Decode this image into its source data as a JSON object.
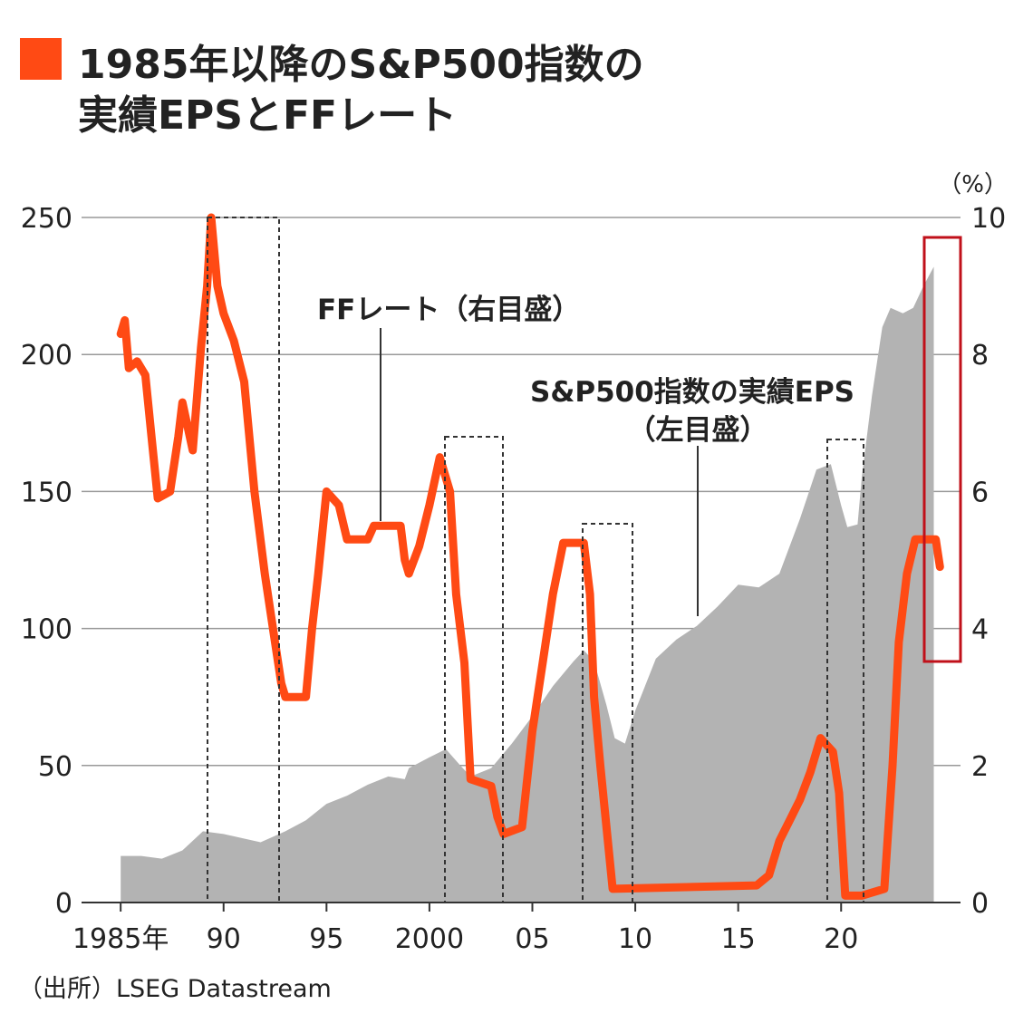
{
  "chart_data": {
    "type": "combo",
    "title": "1985年以降のS&P500指数の",
    "subtitle": "実績EPSとFFレート",
    "source": "（出所）LSEG Datastream",
    "y2_unit": "（%）",
    "annotations": [
      "FFレート（右目盛）",
      "S&P500指数の実績EPS",
      "（左目盛）"
    ],
    "xlim": [
      1983.1,
      2025.8
    ],
    "xticks": [
      {
        "value": 1985,
        "label": "1985年"
      },
      {
        "value": 1990,
        "label": "90"
      },
      {
        "value": 1995,
        "label": "95"
      },
      2000,
      {
        "value": 2005,
        "label": "05"
      },
      {
        "value": 2010,
        "label": "10"
      },
      {
        "value": 2015,
        "label": "15"
      },
      {
        "value": 2020,
        "label": "20"
      }
    ],
    "ylim": [
      0,
      250
    ],
    "yticks": [
      0,
      50,
      100,
      150,
      200,
      250
    ],
    "y2lim": [
      0,
      10
    ],
    "y2ticks": [
      0,
      2,
      4,
      6,
      8,
      10
    ],
    "grid": true,
    "series": [
      {
        "name": "S&P500指数の実績EPS",
        "type": "area",
        "color": "#b3b3b3",
        "x": [
          1985,
          1986,
          1987,
          1988,
          1989,
          1990,
          1991.8,
          1993,
          1994,
          1995,
          1996,
          1997,
          1998,
          1998.8,
          1999,
          2000,
          2000.8,
          2001.5,
          2002,
          2003,
          2004,
          2005,
          2006,
          2007,
          2007.5,
          2008,
          2008.6,
          2009,
          2009.5,
          2010,
          2011,
          2012,
          2013,
          2014,
          2015,
          2016,
          2017,
          2018,
          2018.8,
          2019.5,
          2020,
          2020.3,
          2020.8,
          2021,
          2021.5,
          2022,
          2022.4,
          2023,
          2023.5,
          2024,
          2024.5
        ],
        "values": [
          17,
          17,
          16,
          19,
          26,
          25,
          22,
          26,
          30,
          36,
          39,
          43,
          46,
          45,
          49,
          53,
          56,
          50,
          46,
          49,
          58,
          68,
          79,
          88,
          92,
          88,
          72,
          60,
          58,
          70,
          89,
          96,
          101,
          108,
          116,
          115,
          120,
          140,
          158,
          160,
          145,
          137,
          138,
          155,
          185,
          210,
          217,
          215,
          217,
          225,
          232
        ]
      },
      {
        "name": "FFレート",
        "type": "line",
        "axis": "y2",
        "color": "#ff4a14",
        "x": [
          1985,
          1985.2,
          1985.4,
          1985.8,
          1986.2,
          1986.5,
          1986.8,
          1987.4,
          1987.8,
          1988,
          1988.5,
          1988.9,
          1989.2,
          1989.4,
          1989.7,
          1990,
          1990.5,
          1991,
          1991.5,
          1992,
          1992.5,
          1992.8,
          1993,
          1994,
          1994.3,
          1994.6,
          1995,
          1995.6,
          1996,
          1997,
          1997.3,
          1998.6,
          1998.8,
          1999,
          1999.5,
          2000,
          2000.5,
          2001,
          2001.3,
          2001.7,
          2002,
          2003,
          2003.3,
          2003.6,
          2004.5,
          2005,
          2005.5,
          2006,
          2006.5,
          2007.5,
          2007.8,
          2008,
          2008.3,
          2008.9,
          2015.9,
          2016.5,
          2017,
          2017.5,
          2018,
          2018.5,
          2019,
          2019.6,
          2019.9,
          2020.2,
          2021,
          2022.1,
          2022.5,
          2022.8,
          2023.2,
          2023.6,
          2024.6,
          2024.8
        ],
        "values": [
          8.3,
          8.5,
          7.8,
          7.9,
          7.7,
          6.8,
          5.9,
          6.0,
          6.8,
          7.3,
          6.6,
          8.1,
          9.0,
          10.0,
          9.0,
          8.6,
          8.2,
          7.6,
          6.0,
          4.8,
          3.8,
          3.2,
          3.0,
          3.0,
          4.0,
          4.8,
          6.0,
          5.8,
          5.3,
          5.3,
          5.5,
          5.5,
          5.0,
          4.8,
          5.2,
          5.8,
          6.5,
          6.0,
          4.5,
          3.5,
          1.8,
          1.7,
          1.25,
          1.0,
          1.1,
          2.5,
          3.5,
          4.5,
          5.25,
          5.25,
          4.5,
          3.0,
          2.0,
          0.2,
          0.25,
          0.4,
          0.9,
          1.2,
          1.5,
          1.9,
          2.4,
          2.2,
          1.6,
          0.1,
          0.1,
          0.2,
          2.0,
          3.8,
          4.8,
          5.3,
          5.3,
          4.9
        ]
      }
    ]
  }
}
